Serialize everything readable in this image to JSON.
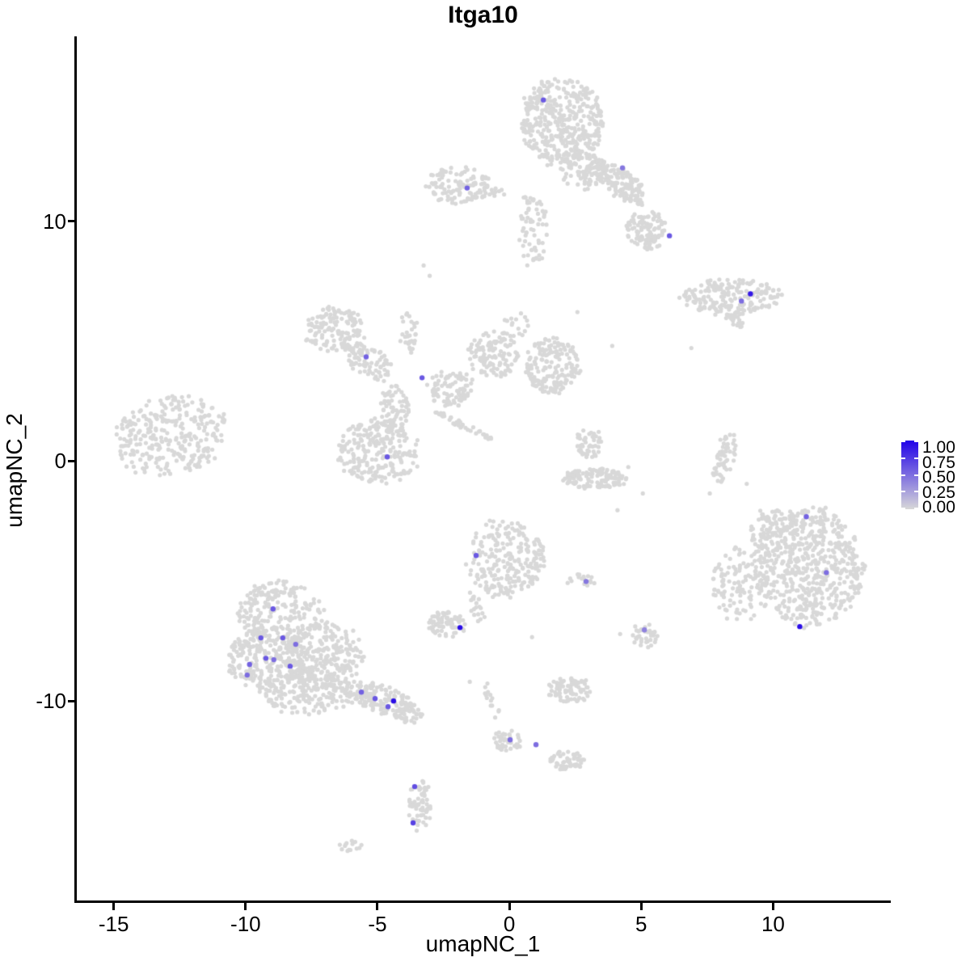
{
  "title": "Itga10",
  "axes": {
    "x_label": "umapNC_1",
    "y_label": "umapNC_2",
    "x_ticks": [
      {
        "value": -15,
        "label": "-15"
      },
      {
        "value": -10,
        "label": "-10"
      },
      {
        "value": -5,
        "label": "-5"
      },
      {
        "value": 0,
        "label": "0"
      },
      {
        "value": 5,
        "label": "5"
      },
      {
        "value": 10,
        "label": "10"
      }
    ],
    "y_ticks": [
      {
        "value": 10,
        "label": "10"
      },
      {
        "value": 0,
        "label": "0"
      },
      {
        "value": -10,
        "label": "-10"
      }
    ]
  },
  "legend": {
    "labels": [
      "1.00",
      "0.75",
      "0.50",
      "0.25",
      "0.00"
    ],
    "values": [
      1.0,
      0.75,
      0.5,
      0.25,
      0.0
    ],
    "high_color": "#2102e8",
    "low_color": "#d8d8d8"
  },
  "chart_data": {
    "type": "scatter",
    "title": "Itga10",
    "xlabel": "umapNC_1",
    "ylabel": "umapNC_2",
    "xlim": [
      -16.4,
      14.4
    ],
    "ylim": [
      -18.35,
      17.7
    ],
    "point_color_low": "#d8d8d8",
    "point_color_high": "#2102e8",
    "point_radius_px": 2.6,
    "expressing_point_radius_px": 3.2,
    "clusters_format": "[center_x, center_y, radius_x, radius_y, n_points, rotation_deg] in data units; background cells, expression = 0",
    "clusters": [
      [
        1.99,
        14.14,
        1.55,
        1.85,
        400,
        0
      ],
      [
        2.76,
        12.12,
        0.8,
        0.8,
        80,
        0
      ],
      [
        4.14,
        11.62,
        1.3,
        0.55,
        160,
        -40
      ],
      [
        5.21,
        9.6,
        0.8,
        0.8,
        110,
        0
      ],
      [
        0.92,
        9.6,
        0.55,
        1.5,
        60,
        0
      ],
      [
        -1.93,
        11.52,
        1.3,
        0.75,
        120,
        0
      ],
      [
        -0.46,
        11.21,
        0.45,
        0.18,
        10,
        0
      ],
      [
        0.68,
        10.9,
        0.3,
        0.15,
        6,
        0
      ],
      [
        8.44,
        6.84,
        1.9,
        0.75,
        190,
        0
      ],
      [
        8.53,
        5.86,
        0.45,
        0.22,
        20,
        -45
      ],
      [
        -12.82,
        1.01,
        2.15,
        1.65,
        300,
        10
      ],
      [
        -6.6,
        5.45,
        1.15,
        0.95,
        140,
        0
      ],
      [
        -5.28,
        4.11,
        1.0,
        0.6,
        80,
        -35
      ],
      [
        -3.83,
        5.32,
        0.35,
        1.0,
        30,
        0
      ],
      [
        -4.36,
        2.09,
        0.55,
        1.1,
        70,
        0
      ],
      [
        -4.97,
        0.44,
        1.55,
        1.35,
        240,
        0
      ],
      [
        -2.21,
        3.03,
        0.95,
        0.75,
        90,
        0
      ],
      [
        -0.61,
        4.44,
        0.95,
        1.05,
        120,
        0
      ],
      [
        1.6,
        3.97,
        1.05,
        1.15,
        180,
        0
      ],
      [
        -1.69,
        1.45,
        1.3,
        0.14,
        40,
        -28
      ],
      [
        0.31,
        5.72,
        0.5,
        0.6,
        15,
        0
      ],
      [
        3.01,
        0.74,
        0.55,
        0.6,
        50,
        0
      ],
      [
        3.28,
        -0.74,
        1.25,
        0.45,
        120,
        0
      ],
      [
        8.16,
        0.17,
        0.38,
        1.05,
        60,
        -12
      ],
      [
        11.35,
        -4.38,
        2.05,
        2.45,
        600,
        0
      ],
      [
        8.68,
        -5.15,
        1.0,
        1.6,
        110,
        0
      ],
      [
        9.88,
        -2.86,
        0.85,
        0.85,
        70,
        0
      ],
      [
        -0.15,
        -4.04,
        1.5,
        1.6,
        240,
        0
      ],
      [
        -1.29,
        -5.99,
        0.3,
        0.75,
        18,
        20
      ],
      [
        -2.36,
        -6.84,
        0.7,
        0.6,
        70,
        0
      ],
      [
        2.82,
        -4.95,
        0.5,
        0.28,
        16,
        0
      ],
      [
        5.15,
        -7.27,
        0.5,
        0.55,
        35,
        0
      ],
      [
        -8.68,
        -6.3,
        1.6,
        1.35,
        220,
        0
      ],
      [
        -9.2,
        -8.25,
        1.5,
        1.25,
        240,
        0
      ],
      [
        -7.06,
        -8.08,
        1.5,
        1.35,
        240,
        0
      ],
      [
        -7.67,
        -9.6,
        1.8,
        0.95,
        190,
        0
      ],
      [
        -4.97,
        -9.9,
        1.35,
        0.6,
        130,
        -18
      ],
      [
        -3.83,
        -10.51,
        0.55,
        0.4,
        45,
        -18
      ],
      [
        2.33,
        -9.53,
        0.85,
        0.55,
        80,
        0
      ],
      [
        -0.67,
        -10.03,
        0.22,
        0.95,
        14,
        15
      ],
      [
        -0.06,
        -11.65,
        0.55,
        0.45,
        40,
        0
      ],
      [
        2.21,
        -12.46,
        0.65,
        0.45,
        55,
        0
      ],
      [
        -3.4,
        -14.31,
        0.42,
        1.1,
        65,
        0
      ],
      [
        -6.04,
        -16.03,
        0.45,
        0.22,
        14,
        0
      ]
    ],
    "sparse_points": [
      [
        -3.25,
        8.15
      ],
      [
        -3.02,
        7.72
      ],
      [
        0.6,
        11.0
      ],
      [
        0.76,
        10.77
      ],
      [
        2.58,
        6.21
      ],
      [
        3.9,
        4.8
      ],
      [
        6.9,
        4.71
      ],
      [
        4.51,
        -0.25
      ],
      [
        5.06,
        -1.35
      ],
      [
        7.6,
        -1.35
      ],
      [
        4.1,
        -2.05
      ],
      [
        0.86,
        -7.34
      ],
      [
        2.21,
        -5.08
      ],
      [
        4.2,
        -7.21
      ],
      [
        -1.5,
        -9.2
      ],
      [
        9.0,
        -0.95
      ]
    ],
    "expressing_points_format": "[x, y, expression_value 0..1]",
    "expressing_points": [
      [
        1.29,
        15.05,
        0.6
      ],
      [
        4.29,
        12.22,
        0.45
      ],
      [
        6.07,
        9.39,
        0.6
      ],
      [
        -1.6,
        11.38,
        0.55
      ],
      [
        9.14,
        6.97,
        0.9
      ],
      [
        8.8,
        6.67,
        0.5
      ],
      [
        -5.43,
        4.34,
        0.55
      ],
      [
        -3.31,
        3.47,
        0.6
      ],
      [
        -4.63,
        0.17,
        0.6
      ],
      [
        -1.26,
        -3.94,
        0.6
      ],
      [
        2.91,
        -5.02,
        0.45
      ],
      [
        11.26,
        -2.32,
        0.55
      ],
      [
        12.02,
        -4.65,
        0.5
      ],
      [
        11.01,
        -6.9,
        0.95
      ],
      [
        -1.87,
        -6.94,
        0.95
      ],
      [
        5.12,
        -7.04,
        0.4
      ],
      [
        -8.96,
        -6.16,
        0.6
      ],
      [
        -9.42,
        -7.37,
        0.6
      ],
      [
        -8.59,
        -7.37,
        0.6
      ],
      [
        -8.1,
        -7.64,
        0.5
      ],
      [
        -9.23,
        -8.22,
        0.6
      ],
      [
        -8.93,
        -8.28,
        0.5
      ],
      [
        -9.85,
        -8.48,
        0.55
      ],
      [
        -8.31,
        -8.55,
        0.6
      ],
      [
        -9.94,
        -8.92,
        0.5
      ],
      [
        -5.61,
        -9.63,
        0.55
      ],
      [
        -5.09,
        -9.9,
        0.6
      ],
      [
        -4.39,
        -10.0,
        0.95
      ],
      [
        -4.6,
        -10.24,
        0.6
      ],
      [
        0.03,
        -11.62,
        0.5
      ],
      [
        1.01,
        -11.82,
        0.5
      ],
      [
        -3.59,
        -13.57,
        0.65
      ],
      [
        -3.65,
        -15.08,
        0.7
      ]
    ]
  }
}
